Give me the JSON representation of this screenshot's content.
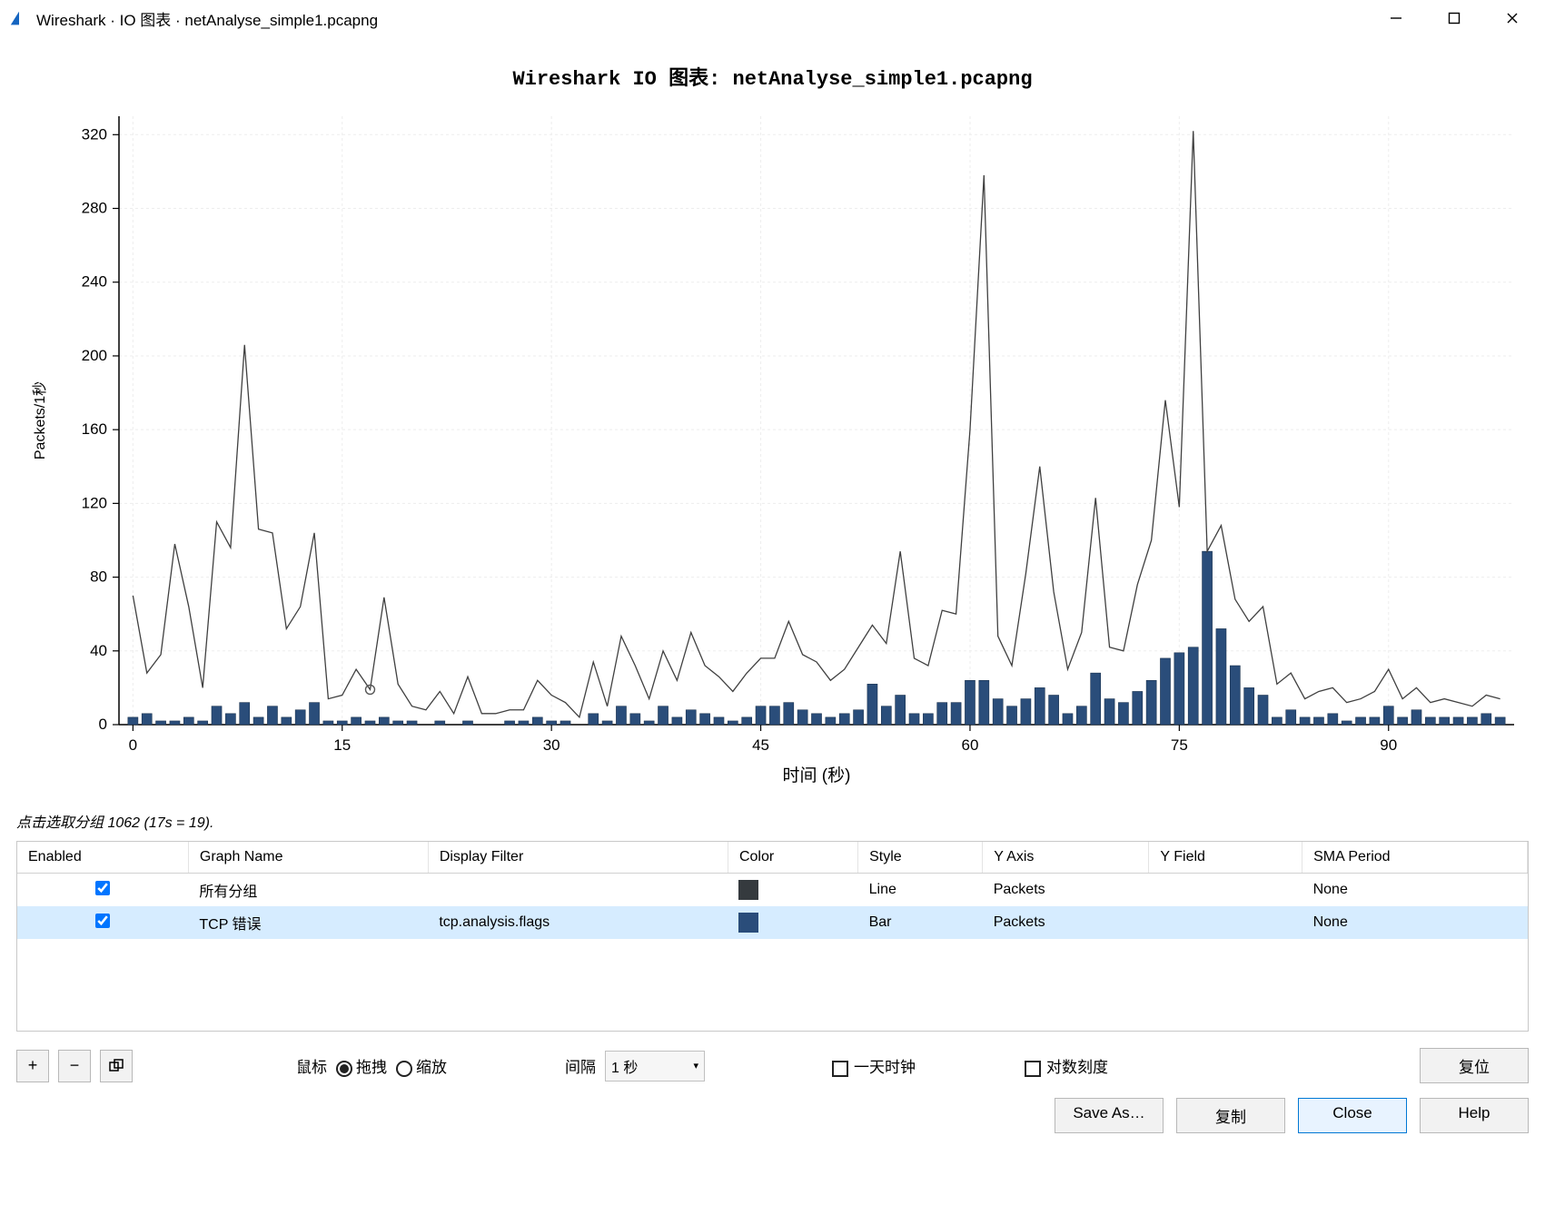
{
  "window": {
    "title": "Wireshark · IO 图表 · netAnalyse_simple1.pcapng"
  },
  "chart": {
    "title": "Wireshark IO 图表: netAnalyse_simple1.pcapng",
    "xlabel": "时间 (秒)",
    "ylabel": "Packets/1秒",
    "xlim": [
      -1,
      99
    ],
    "ylim": [
      0,
      330
    ],
    "xticks": [
      0,
      15,
      30,
      45,
      60,
      75,
      90
    ],
    "yticks": [
      0,
      40,
      80,
      120,
      160,
      200,
      240,
      280,
      320
    ],
    "plot_bg": "#ffffff",
    "grid_color": "#ededed",
    "axis_color": "#000000",
    "line_series": {
      "color": "#404040",
      "width": 1.3,
      "marker_x": 17,
      "marker_y": 19,
      "values": [
        70,
        28,
        38,
        98,
        64,
        20,
        110,
        96,
        206,
        106,
        104,
        52,
        64,
        104,
        14,
        16,
        30,
        19,
        69,
        22,
        10,
        8,
        18,
        6,
        26,
        6,
        6,
        8,
        8,
        24,
        16,
        12,
        4,
        34,
        10,
        48,
        32,
        14,
        40,
        24,
        50,
        32,
        26,
        18,
        28,
        36,
        36,
        56,
        38,
        34,
        24,
        30,
        42,
        54,
        44,
        94,
        36,
        32,
        62,
        60,
        160,
        298,
        48,
        32,
        82,
        140,
        72,
        30,
        50,
        123,
        42,
        40,
        76,
        100,
        176,
        118,
        322,
        94,
        108,
        68,
        56,
        64,
        22,
        28,
        14,
        18,
        20,
        12,
        14,
        18,
        30,
        14,
        20,
        12,
        14,
        12,
        10,
        16,
        14
      ]
    },
    "bar_series": {
      "color": "#2a4d7a",
      "outline": "#1c3450",
      "values": [
        4,
        6,
        2,
        2,
        4,
        2,
        10,
        6,
        12,
        4,
        10,
        4,
        8,
        12,
        2,
        2,
        4,
        2,
        4,
        2,
        2,
        0,
        2,
        0,
        2,
        0,
        0,
        2,
        2,
        4,
        2,
        2,
        0,
        6,
        2,
        10,
        6,
        2,
        10,
        4,
        8,
        6,
        4,
        2,
        4,
        10,
        10,
        12,
        8,
        6,
        4,
        6,
        8,
        22,
        10,
        16,
        6,
        6,
        12,
        12,
        24,
        24,
        14,
        10,
        14,
        20,
        16,
        6,
        10,
        28,
        14,
        12,
        18,
        24,
        36,
        39,
        42,
        94,
        52,
        32,
        20,
        16,
        4,
        8,
        4,
        4,
        6,
        2,
        4,
        4,
        10,
        4,
        8,
        4,
        4,
        4,
        4,
        6,
        4
      ]
    }
  },
  "status": "点击选取分组 1062 (17s = 19).",
  "table": {
    "columns": [
      "Enabled",
      "Graph Name",
      "Display Filter",
      "Color",
      "Style",
      "Y Axis",
      "Y Field",
      "SMA Period"
    ],
    "rows": [
      {
        "enabled": true,
        "name": "所有分组",
        "filter": "",
        "color": "#353a3e",
        "style": "Line",
        "yaxis": "Packets",
        "yfield": "",
        "sma": "None",
        "selected": false
      },
      {
        "enabled": true,
        "name": "TCP 错误",
        "filter": "tcp.analysis.flags",
        "color": "#2a4d7a",
        "style": "Bar",
        "yaxis": "Packets",
        "yfield": "",
        "sma": "None",
        "selected": true
      }
    ]
  },
  "toolbar": {
    "mouse_label": "鼠标",
    "drag": "拖拽",
    "zoom": "缩放",
    "interval_label": "间隔",
    "interval_value": "1 秒",
    "day_clock": "一天时钟",
    "log_scale": "对数刻度",
    "reset": "复位"
  },
  "buttons": {
    "save_as": "Save As…",
    "copy": "复制",
    "close": "Close",
    "help": "Help"
  }
}
